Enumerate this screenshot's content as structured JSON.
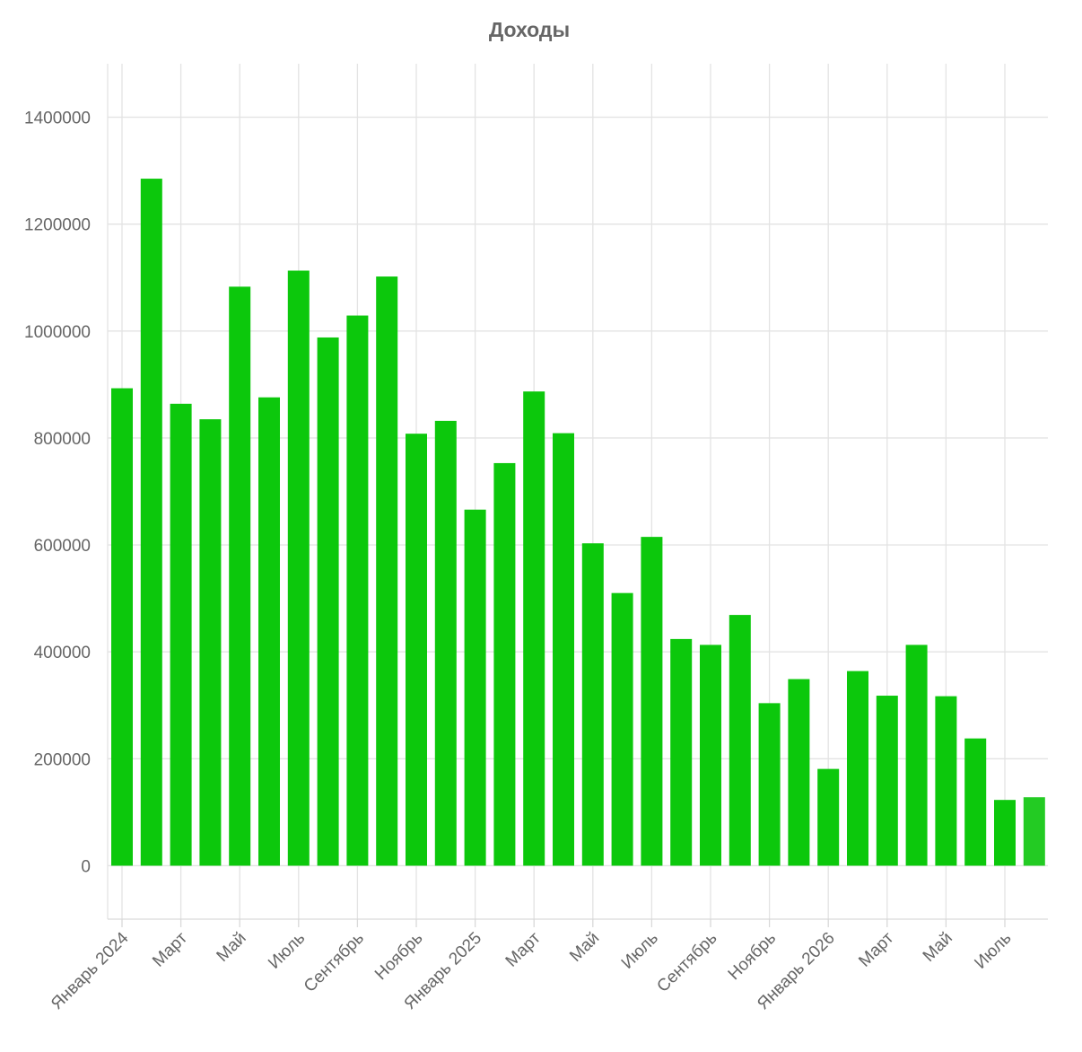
{
  "chart_data": {
    "type": "bar",
    "title": "Доходы",
    "color": "#0cc80c",
    "last_bar_color": "#23cb23",
    "ylim": [
      -100000,
      1500000
    ],
    "y_ticks": [
      0,
      200000,
      400000,
      600000,
      800000,
      1000000,
      1200000,
      1400000
    ],
    "y_tick_labels": [
      "0",
      "200000",
      "400000",
      "600000",
      "800000",
      "1000000",
      "1200000",
      "1400000"
    ],
    "grid": true,
    "categories": [
      "2024-01",
      "2024-02",
      "2024-03",
      "2024-04",
      "2024-05",
      "2024-06",
      "2024-07",
      "2024-08",
      "2024-09",
      "2024-10",
      "2024-11",
      "2024-12",
      "2025-01",
      "2025-02",
      "2025-03",
      "2025-04",
      "2025-05",
      "2025-06",
      "2025-07",
      "2025-08",
      "2025-09",
      "2025-10",
      "2025-11",
      "2025-12",
      "2026-01",
      "2026-02",
      "2026-03",
      "2026-04",
      "2026-05",
      "2026-06",
      "2026-07",
      "2026-08"
    ],
    "values": [
      893000,
      1285000,
      864000,
      835000,
      1083000,
      876000,
      1113000,
      988000,
      1029000,
      1102000,
      808000,
      832000,
      666000,
      753000,
      887000,
      809000,
      603000,
      510000,
      615000,
      424000,
      413000,
      469000,
      304000,
      349000,
      181000,
      364000,
      318000,
      413000,
      317000,
      238000,
      123000,
      128000
    ],
    "x_tick_labels": [
      {
        "index": 0,
        "label": "Январь 2024"
      },
      {
        "index": 2,
        "label": "Март"
      },
      {
        "index": 4,
        "label": "Май"
      },
      {
        "index": 6,
        "label": "Июль"
      },
      {
        "index": 8,
        "label": "Сентябрь"
      },
      {
        "index": 10,
        "label": "Ноябрь"
      },
      {
        "index": 12,
        "label": "Январь 2025"
      },
      {
        "index": 14,
        "label": "Март"
      },
      {
        "index": 16,
        "label": "Май"
      },
      {
        "index": 18,
        "label": "Июль"
      },
      {
        "index": 20,
        "label": "Сентябрь"
      },
      {
        "index": 22,
        "label": "Ноябрь"
      },
      {
        "index": 24,
        "label": "Январь 2026"
      },
      {
        "index": 26,
        "label": "Март"
      },
      {
        "index": 28,
        "label": "Май"
      },
      {
        "index": 30,
        "label": "Июль"
      }
    ]
  }
}
